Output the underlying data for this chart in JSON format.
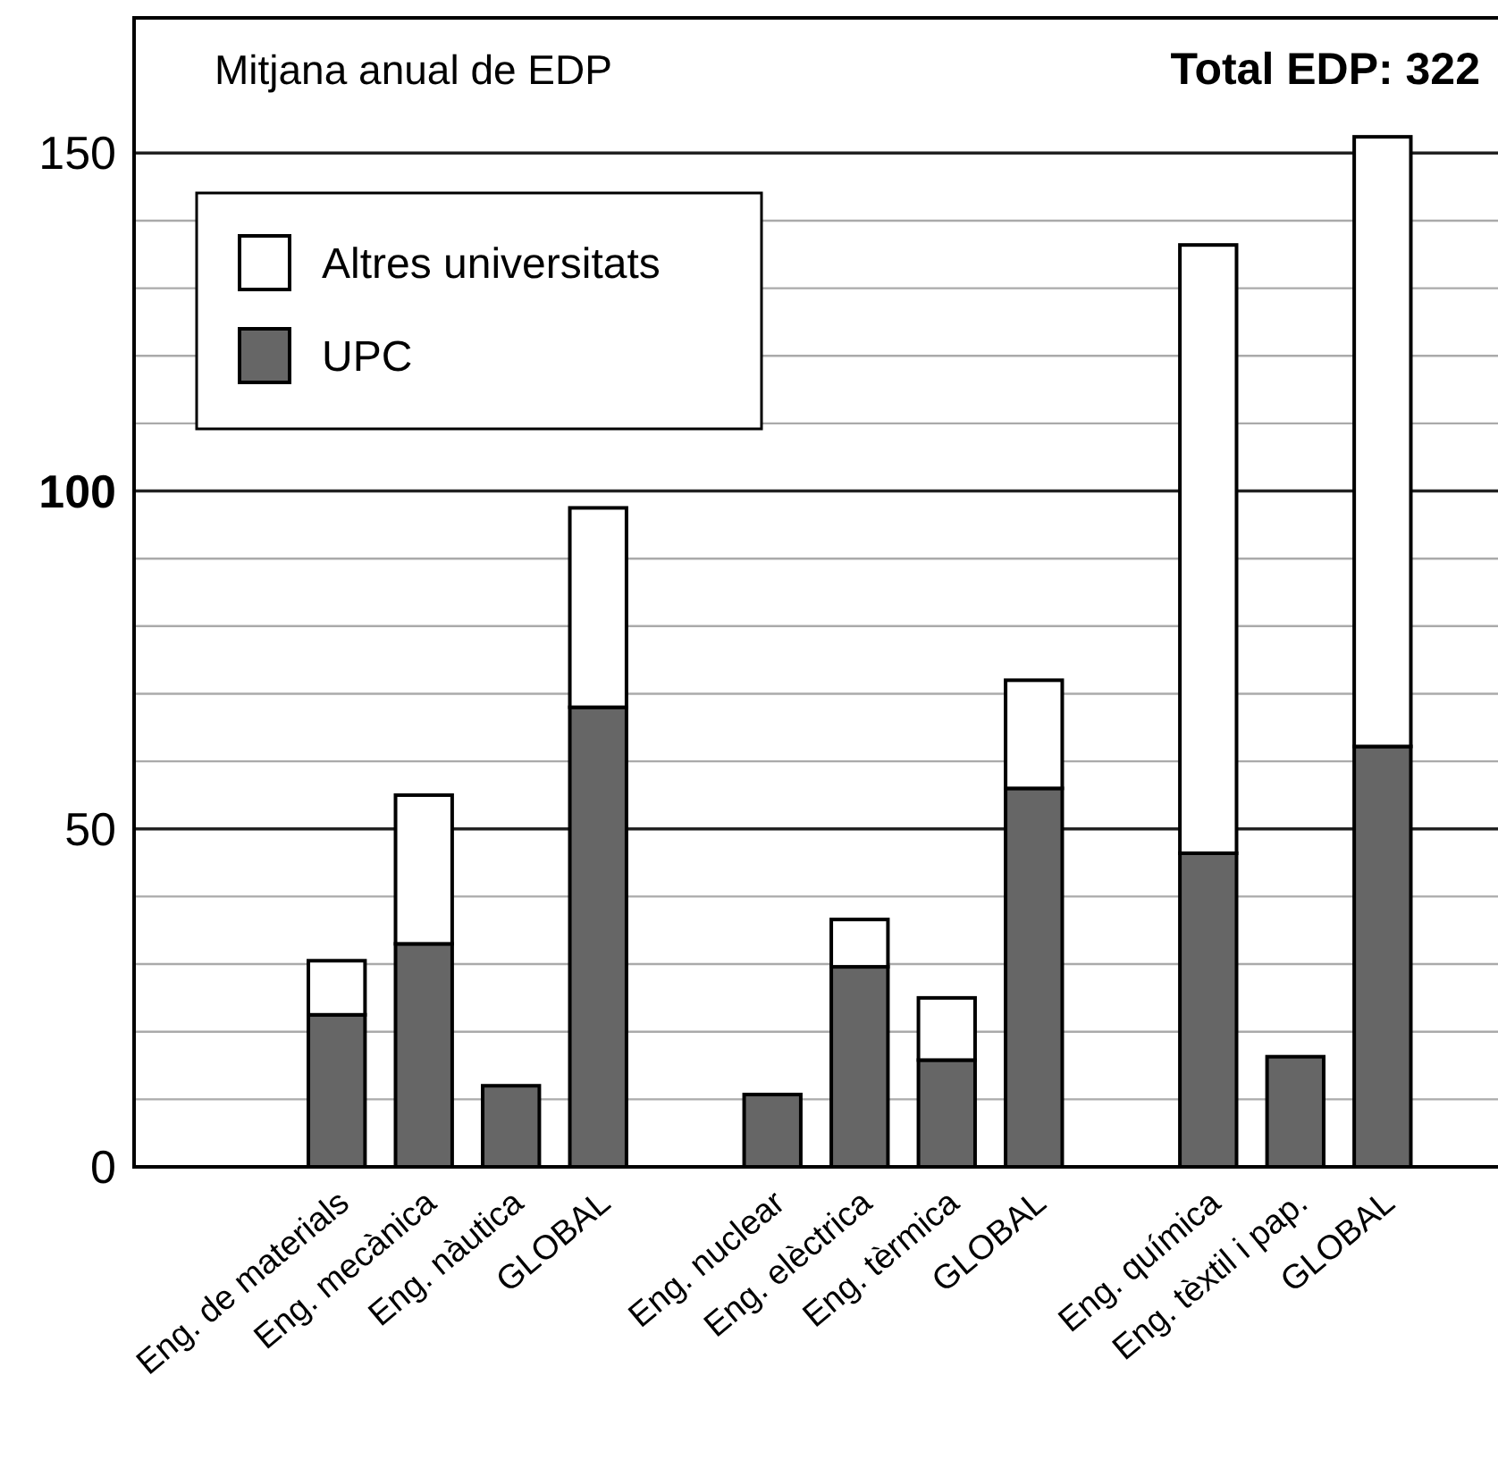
{
  "chart_data": {
    "type": "bar",
    "stacked": true,
    "title": "Mitjana anual de EDP",
    "annotations": [
      "Total EDP: 322"
    ],
    "categories": [
      null,
      null,
      "Eng. de materials",
      "Eng. mecànica",
      "Eng. nàutica",
      "GLOBAL",
      null,
      "Eng. nuclear",
      "Eng. elèctrica",
      "Eng. tèrmica",
      "GLOBAL",
      null,
      "Eng. química",
      "Eng. tèxtil i pap.",
      "GLOBAL",
      null
    ],
    "series": [
      {
        "name": "UPC",
        "color": "#666666",
        "values": [
          null,
          null,
          22.5,
          33,
          12,
          68,
          null,
          10.7,
          29.6,
          15.8,
          56,
          null,
          46.4,
          16.3,
          62.2,
          null
        ]
      },
      {
        "name": "Altres universitats",
        "color": "#ffffff",
        "values": [
          null,
          null,
          8,
          22,
          null,
          29.5,
          null,
          null,
          7,
          9.2,
          16,
          null,
          90,
          null,
          90.2,
          null
        ]
      }
    ],
    "ylim": [
      0,
      170
    ],
    "yticks": [
      0,
      {
        "value": 10,
        "label": null
      },
      {
        "value": 20,
        "label": null
      },
      {
        "value": 30,
        "label": null
      },
      {
        "value": 40,
        "label": null
      },
      50,
      {
        "value": 60,
        "label": null
      },
      {
        "value": 70,
        "label": null
      },
      {
        "value": 80,
        "label": null
      },
      {
        "value": 90,
        "label": null
      },
      100,
      {
        "value": 110,
        "label": null
      },
      {
        "value": 120,
        "label": null
      },
      {
        "value": 130,
        "label": null
      },
      {
        "value": 140,
        "label": null
      },
      150
    ],
    "grid": "y",
    "legend": "top left"
  }
}
